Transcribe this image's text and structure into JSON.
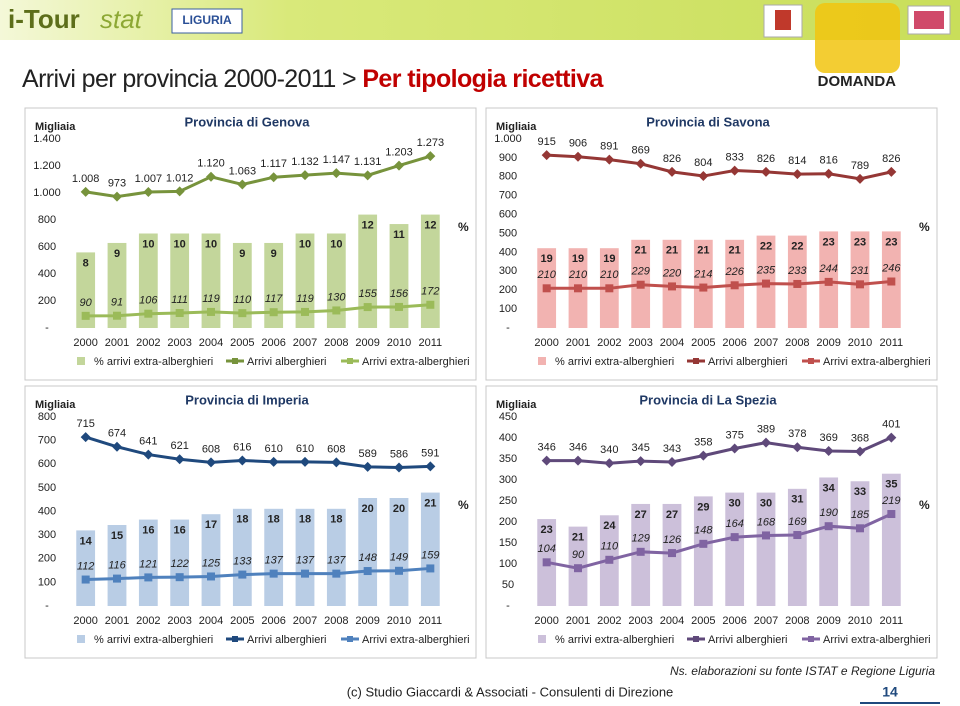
{
  "header": {
    "logo": "i-Tour",
    "logo2": "stat",
    "region": "LIGURIA",
    "title": "Arrivi per provincia  2000-2011 > ",
    "title_bold": "Per tipologia ricettiva",
    "section": "DOMANDA"
  },
  "chart_data": [
    {
      "type": "combo",
      "title": "Provincia di Genova",
      "y_label": "Migliaia",
      "y2_label": "%",
      "categories": [
        "2000",
        "2001",
        "2002",
        "2003",
        "2004",
        "2005",
        "2006",
        "2007",
        "2008",
        "2009",
        "2010",
        "2011"
      ],
      "ylim": [
        0,
        1400
      ],
      "yticks": [
        {
          "value": 0,
          "label": "-"
        },
        200,
        400,
        600,
        800,
        {
          "value": 1000,
          "label": "1.000"
        },
        {
          "value": 1200,
          "label": "1.200"
        },
        {
          "value": 1400,
          "label": "1.400"
        }
      ],
      "y2lim": [
        0,
        20
      ],
      "series": [
        {
          "name": "% arrivi extra-alberghieri",
          "type": "bar",
          "axis": "y2",
          "color": "#c3d69b",
          "values": [
            8,
            9,
            10,
            10,
            10,
            9,
            9,
            10,
            10,
            12,
            11,
            12
          ]
        },
        {
          "name": "Arrivi alberghieri",
          "type": "line",
          "color": "#77933c",
          "values": [
            1008,
            973,
            1007,
            1012,
            1120,
            1063,
            1117,
            1132,
            1147,
            1131,
            1203,
            1273
          ],
          "value_labels": [
            "1.008",
            "973",
            "1.007",
            "1.012",
            "1.120",
            "1.063",
            "1.117",
            "1.132",
            "1.147",
            "1.131",
            "1.203",
            "1.273"
          ]
        },
        {
          "name": "Arrivi extra-alberghieri",
          "type": "line",
          "color": "#9bbb59",
          "values": [
            90,
            91,
            106,
            111,
            119,
            110,
            117,
            119,
            130,
            155,
            156,
            172
          ]
        }
      ]
    },
    {
      "type": "combo",
      "title": "Provincia di Savona",
      "y_label": "Migliaia",
      "y2_label": "%",
      "categories": [
        "2000",
        "2001",
        "2002",
        "2003",
        "2004",
        "2005",
        "2006",
        "2007",
        "2008",
        "2009",
        "2010",
        "2011"
      ],
      "ylim": [
        0,
        1000
      ],
      "yticks": [
        {
          "value": 0,
          "label": "-"
        },
        100,
        200,
        300,
        400,
        500,
        600,
        700,
        800,
        900,
        {
          "value": 1000,
          "label": "1.000"
        }
      ],
      "y2lim": [
        0,
        45
      ],
      "series": [
        {
          "name": "% arrivi extra-alberghieri",
          "type": "bar",
          "axis": "y2",
          "color": "#f2b3b1",
          "values": [
            19,
            19,
            19,
            21,
            21,
            21,
            21,
            22,
            22,
            23,
            23,
            23
          ]
        },
        {
          "name": "Arrivi alberghieri",
          "type": "line",
          "color": "#953735",
          "values": [
            915,
            906,
            891,
            869,
            826,
            804,
            833,
            826,
            814,
            816,
            789,
            826
          ]
        },
        {
          "name": "Arrivi extra-alberghieri",
          "type": "line",
          "color": "#c0504d",
          "values": [
            210,
            210,
            210,
            229,
            220,
            214,
            226,
            235,
            233,
            244,
            231,
            246
          ]
        }
      ]
    },
    {
      "type": "combo",
      "title": "Provincia di Imperia",
      "y_label": "Migliaia",
      "y2_label": "%",
      "categories": [
        "2000",
        "2001",
        "2002",
        "2003",
        "2004",
        "2005",
        "2006",
        "2007",
        "2008",
        "2009",
        "2010",
        "2011"
      ],
      "ylim": [
        0,
        800
      ],
      "yticks": [
        {
          "value": 0,
          "label": "-"
        },
        100,
        200,
        300,
        400,
        500,
        600,
        700,
        800
      ],
      "y2lim": [
        0,
        35
      ],
      "series": [
        {
          "name": "% arrivi extra-alberghieri",
          "type": "bar",
          "axis": "y2",
          "color": "#b9cde5",
          "values": [
            14,
            15,
            16,
            16,
            17,
            18,
            18,
            18,
            18,
            20,
            20,
            21
          ]
        },
        {
          "name": "Arrivi alberghieri",
          "type": "line",
          "color": "#1f497d",
          "values": [
            715,
            674,
            641,
            621,
            608,
            616,
            610,
            610,
            608,
            589,
            586,
            591
          ]
        },
        {
          "name": "Arrivi extra-alberghieri",
          "type": "line",
          "color": "#4f81bd",
          "values": [
            112,
            116,
            121,
            122,
            125,
            133,
            137,
            137,
            137,
            148,
            149,
            159
          ]
        }
      ]
    },
    {
      "type": "combo",
      "title": "Provincia di La Spezia",
      "y_label": "Migliaia",
      "y2_label": "%",
      "categories": [
        "2000",
        "2001",
        "2002",
        "2003",
        "2004",
        "2005",
        "2006",
        "2007",
        "2008",
        "2009",
        "2010",
        "2011"
      ],
      "ylim": [
        0,
        450
      ],
      "yticks": [
        {
          "value": 0,
          "label": "-"
        },
        50,
        100,
        150,
        200,
        250,
        300,
        350,
        400,
        450
      ],
      "y2lim": [
        0,
        50
      ],
      "series": [
        {
          "name": "% arrivi extra-alberghieri",
          "type": "bar",
          "axis": "y2",
          "color": "#ccc0da",
          "values": [
            23,
            21,
            24,
            27,
            27,
            29,
            30,
            30,
            31,
            34,
            33,
            35
          ]
        },
        {
          "name": "Arrivi alberghieri",
          "type": "line",
          "color": "#5f497a",
          "values": [
            346,
            346,
            340,
            345,
            343,
            358,
            375,
            389,
            378,
            369,
            368,
            401
          ]
        },
        {
          "name": "Arrivi extra-alberghieri",
          "type": "line",
          "color": "#8064a2",
          "values": [
            104,
            90,
            110,
            129,
            126,
            148,
            164,
            168,
            169,
            190,
            185,
            219
          ]
        }
      ]
    }
  ],
  "footer": {
    "note": "Ns. elaborazioni su fonte ISTAT e Regione Liguria",
    "copyright": "(c) Studio Giaccardi & Associati - Consulenti di Direzione",
    "page": "14"
  }
}
